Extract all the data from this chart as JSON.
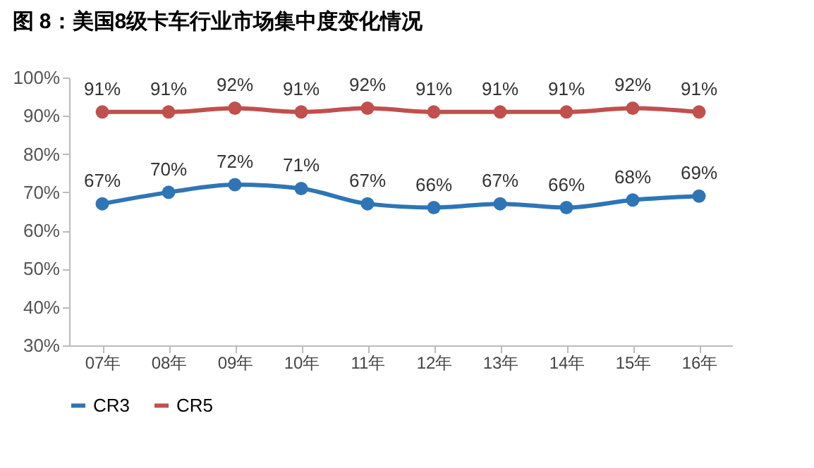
{
  "chart_data": {
    "type": "line",
    "title": "图 8：美国8级卡车行业市场集中度变化情况",
    "categories": [
      "07年",
      "08年",
      "09年",
      "10年",
      "11年",
      "12年",
      "13年",
      "14年",
      "15年",
      "16年"
    ],
    "series": [
      {
        "name": "CR3",
        "color": "#2e75b6",
        "values": [
          67,
          70,
          72,
          71,
          67,
          66,
          67,
          66,
          68,
          69
        ],
        "value_labels": [
          "67%",
          "70%",
          "72%",
          "71%",
          "67%",
          "66%",
          "67%",
          "66%",
          "68%",
          "69%"
        ]
      },
      {
        "name": "CR5",
        "color": "#c0504d",
        "values": [
          91,
          91,
          92,
          91,
          92,
          91,
          91,
          91,
          92,
          91
        ],
        "value_labels": [
          "91%",
          "91%",
          "92%",
          "91%",
          "92%",
          "91%",
          "91%",
          "91%",
          "92%",
          "91%"
        ]
      }
    ],
    "ylim": [
      30,
      100
    ],
    "yticks": [
      {
        "value": 30,
        "label": "30%"
      },
      {
        "value": 40,
        "label": "40%"
      },
      {
        "value": 50,
        "label": "50%"
      },
      {
        "value": 60,
        "label": "60%"
      },
      {
        "value": 70,
        "label": "70%"
      },
      {
        "value": 80,
        "label": "80%"
      },
      {
        "value": 90,
        "label": "90%"
      },
      {
        "value": 100,
        "label": "100%"
      }
    ],
    "grid": false,
    "legend": "bottom",
    "marker": "circle",
    "line_style": "solid"
  }
}
